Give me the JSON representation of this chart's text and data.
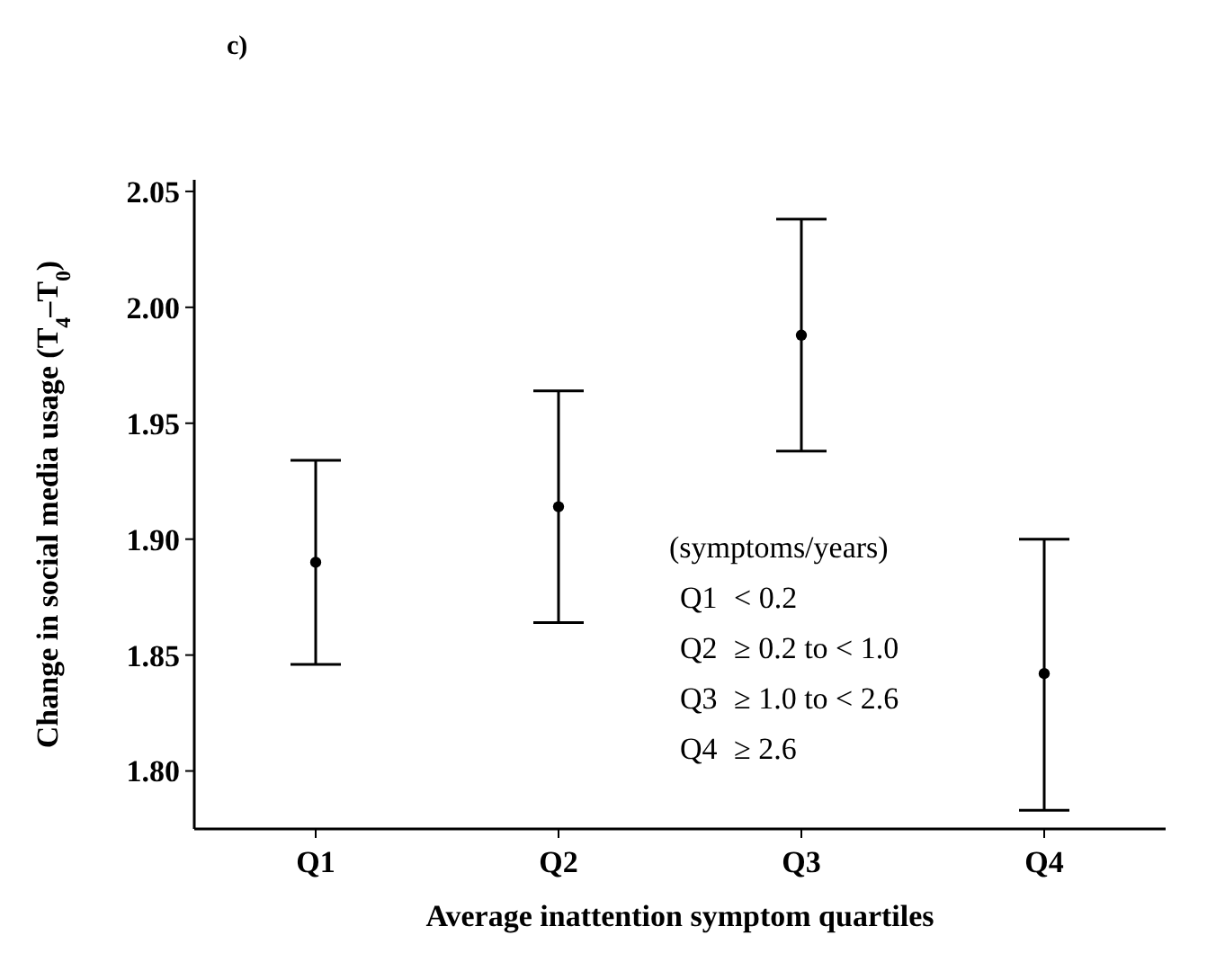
{
  "chart_data": {
    "type": "scatter",
    "xlabel": "Average inattention symptom quartiles",
    "ylabel": "Change in social media usage (T$_{4}$–T$_{0}$)",
    "categories": [
      "Q1",
      "Q2",
      "Q3",
      "Q4"
    ],
    "values": [
      1.89,
      1.914,
      1.988,
      1.842
    ],
    "errors": [
      [
        1.846,
        1.934
      ],
      [
        1.864,
        1.964
      ],
      [
        1.938,
        2.038
      ],
      [
        1.783,
        1.9
      ]
    ],
    "color": "#000000",
    "marker": "circle",
    "grid": false,
    "ylim": [
      1.775,
      2.055
    ],
    "yticks": [
      {
        "value": 1.8,
        "label": "1.80"
      },
      {
        "value": 1.85,
        "label": "1.85"
      },
      {
        "value": 1.9,
        "label": "1.90"
      },
      {
        "value": 1.95,
        "label": "1.95"
      },
      {
        "value": 2.0,
        "label": "2.00"
      },
      {
        "value": 2.05,
        "label": "2.05"
      }
    ],
    "annotations": [
      "c)",
      "(symptoms/years)",
      "Q1  < 0.2",
      "Q2  ≥ 0.2 to < 1.0",
      "Q3  ≥ 1.0 to < 2.6",
      "Q4  ≥ 2.6"
    ]
  }
}
